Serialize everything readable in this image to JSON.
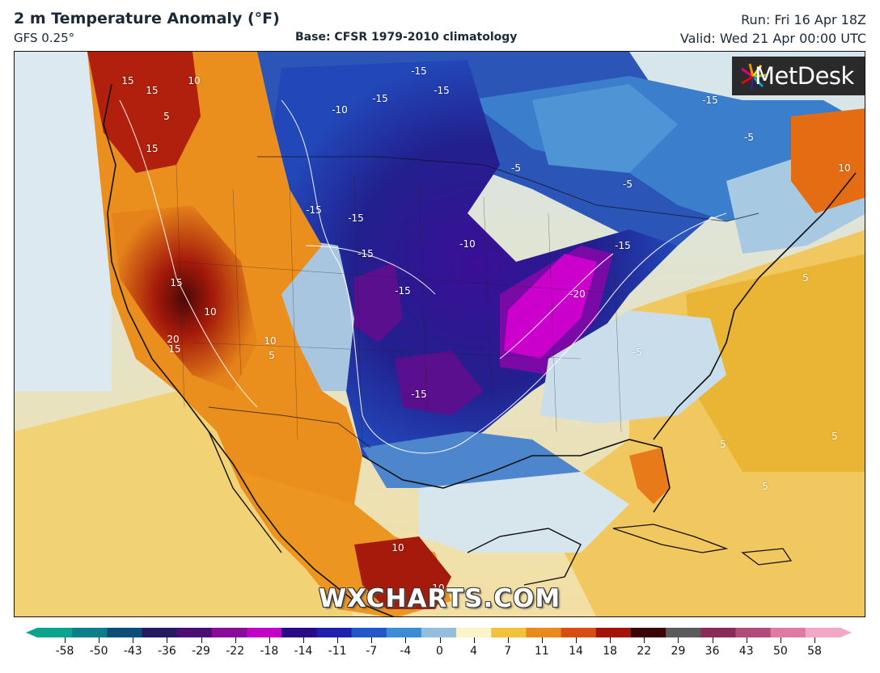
{
  "header": {
    "title": "2 m Temperature Anomaly (°F)",
    "model": "GFS 0.25°",
    "base": "Base: CFSR 1979-2010 climatology",
    "run": "Run: Fri 16 Apr 18Z",
    "valid": "Valid: Wed 21 Apr 00:00 UTC"
  },
  "map": {
    "region": "North America",
    "field": "2 m temperature anomaly",
    "contour_labels": [
      {
        "text": "15"
      },
      {
        "text": "15"
      },
      {
        "text": "10"
      },
      {
        "text": "5"
      },
      {
        "text": "15"
      },
      {
        "text": "15"
      },
      {
        "text": "10"
      },
      {
        "text": "20"
      },
      {
        "text": "15"
      },
      {
        "text": "10"
      },
      {
        "text": "5"
      },
      {
        "text": "-15"
      },
      {
        "text": "-15"
      },
      {
        "text": "-15"
      },
      {
        "text": "-10"
      },
      {
        "text": "-5"
      },
      {
        "text": "-5"
      },
      {
        "text": "-15"
      },
      {
        "text": "-15"
      },
      {
        "text": "-15"
      },
      {
        "text": "-10"
      },
      {
        "text": "-15"
      },
      {
        "text": "-15"
      },
      {
        "text": "-20"
      },
      {
        "text": "-15"
      },
      {
        "text": "-5"
      },
      {
        "text": "10"
      },
      {
        "text": "5"
      },
      {
        "text": "5"
      },
      {
        "text": "5"
      },
      {
        "text": "5"
      },
      {
        "text": "10"
      },
      {
        "text": "10"
      },
      {
        "text": "-15"
      },
      {
        "text": "-5"
      }
    ]
  },
  "branding": {
    "logo": "MetDesk",
    "watermark": "WXCHARTS.COM"
  },
  "colorbar": {
    "ticks": [
      "-58",
      "-50",
      "-43",
      "-36",
      "-29",
      "-22",
      "-18",
      "-14",
      "-11",
      "-7",
      "-4",
      "0",
      "4",
      "7",
      "11",
      "14",
      "18",
      "22",
      "29",
      "36",
      "43",
      "50",
      "58"
    ],
    "colors": [
      "#0aa38e",
      "#0a7f8a",
      "#0b4f78",
      "#241a62",
      "#4b0c74",
      "#8a0a9a",
      "#c200c6",
      "#2a0a86",
      "#1f1fb0",
      "#2356c6",
      "#3c8bd6",
      "#93bedf",
      "#fbf4c8",
      "#f2c23a",
      "#e98a1a",
      "#d74d12",
      "#a51208",
      "#3a0505",
      "#5a5a5a",
      "#8b2a5a",
      "#b24a7a",
      "#de7aa4",
      "#f2a8c4"
    ],
    "end_left_color": "#0aa38e",
    "end_right_color": "#f2a8c4"
  }
}
